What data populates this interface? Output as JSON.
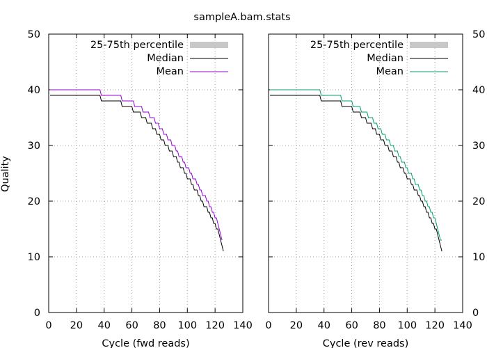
{
  "chart_data": {
    "type": "line",
    "title": "sampleA.bam.stats",
    "ylabel": "Quality",
    "ylim": [
      0,
      50
    ],
    "xlim": [
      0,
      140
    ],
    "yticks": [
      "0",
      "10",
      "20",
      "30",
      "40",
      "50"
    ],
    "xticks": [
      "0",
      "20",
      "40",
      "60",
      "80",
      "100",
      "120",
      "140"
    ],
    "grid": true,
    "legend_position": "top-right",
    "legend": [
      "25-75th percentile",
      "Median",
      "Mean"
    ],
    "panels": [
      {
        "xlabel": "Cycle (fwd reads)",
        "series": [
          {
            "name": "Median",
            "color": "#000000",
            "x": [
              1,
              37,
              38,
              52,
              53,
              60,
              61,
              66,
              67,
              70,
              71,
              74,
              75,
              77,
              78,
              80,
              81,
              83,
              84,
              86,
              87,
              89,
              90,
              92,
              93,
              94,
              95,
              97,
              98,
              99,
              100,
              102,
              103,
              104,
              105,
              107,
              108,
              109,
              110,
              111,
              112,
              114,
              115,
              116,
              117,
              118,
              119,
              120,
              121,
              122,
              123,
              124,
              125,
              126
            ],
            "y": [
              39,
              39,
              38,
              38,
              37,
              37,
              36,
              36,
              35,
              35,
              34,
              34,
              33,
              33,
              32,
              32,
              31,
              31,
              30,
              30,
              29,
              29,
              28,
              28,
              27,
              27,
              26,
              26,
              25,
              25,
              24,
              24,
              23,
              23,
              22,
              22,
              21,
              21,
              20,
              20,
              19,
              19,
              18,
              18,
              17,
              17,
              16,
              16,
              15,
              15,
              14,
              13,
              12,
              11
            ]
          },
          {
            "name": "Mean",
            "color": "#9400d3",
            "x": [
              1,
              37,
              38,
              52,
              53,
              61,
              62,
              67,
              68,
              72,
              73,
              76,
              77,
              79,
              80,
              82,
              83,
              85,
              86,
              88,
              89,
              91,
              92,
              93,
              94,
              96,
              97,
              98,
              99,
              101,
              102,
              103,
              104,
              106,
              107,
              108,
              109,
              110,
              111,
              113,
              114,
              115,
              116,
              117,
              118,
              119,
              120,
              121,
              122,
              123,
              124,
              125
            ],
            "y": [
              40,
              40,
              39,
              39,
              38,
              38,
              37,
              37,
              36,
              36,
              35,
              35,
              34,
              34,
              33,
              33,
              32,
              32,
              31,
              31,
              30,
              30,
              29,
              29,
              28,
              28,
              27,
              27,
              26,
              26,
              25,
              25,
              24,
              24,
              23,
              23,
              22,
              22,
              21,
              21,
              20,
              20,
              19,
              19,
              18,
              18,
              17,
              17,
              16,
              15,
              14,
              13
            ]
          }
        ]
      },
      {
        "xlabel": "Cycle (rev reads)",
        "series": [
          {
            "name": "Median",
            "color": "#000000",
            "x": [
              1,
              37,
              38,
              52,
              53,
              60,
              61,
              66,
              67,
              70,
              71,
              74,
              75,
              77,
              78,
              80,
              81,
              83,
              84,
              86,
              87,
              89,
              90,
              92,
              93,
              94,
              95,
              97,
              98,
              99,
              100,
              102,
              103,
              104,
              105,
              107,
              108,
              109,
              110,
              111,
              112,
              113,
              114,
              115,
              116,
              117,
              118,
              119,
              120,
              121,
              122,
              123,
              124,
              125
            ],
            "y": [
              39,
              39,
              38,
              38,
              37,
              37,
              36,
              36,
              35,
              35,
              34,
              34,
              33,
              33,
              32,
              32,
              31,
              31,
              30,
              30,
              29,
              29,
              28,
              28,
              27,
              27,
              26,
              26,
              25,
              25,
              24,
              24,
              23,
              23,
              22,
              22,
              21,
              21,
              20,
              20,
              19,
              19,
              18,
              18,
              17,
              17,
              16,
              16,
              15,
              15,
              14,
              13,
              12,
              11
            ]
          },
          {
            "name": "Mean",
            "color": "#009e73",
            "x": [
              1,
              37,
              38,
              52,
              53,
              60,
              61,
              66,
              67,
              71,
              72,
              75,
              76,
              78,
              79,
              81,
              82,
              84,
              85,
              87,
              88,
              90,
              91,
              93,
              94,
              95,
              96,
              98,
              99,
              100,
              101,
              103,
              104,
              105,
              106,
              108,
              109,
              110,
              111,
              112,
              113,
              114,
              115,
              116,
              117,
              118,
              119,
              120,
              121,
              122,
              123,
              124,
              125
            ],
            "y": [
              40,
              40,
              39,
              39,
              38,
              38,
              37,
              37,
              36,
              36,
              35,
              35,
              34,
              34,
              33,
              33,
              32,
              32,
              31,
              31,
              30,
              30,
              29,
              29,
              28,
              28,
              27,
              27,
              26,
              26,
              25,
              25,
              24,
              24,
              23,
              23,
              22,
              22,
              21,
              21,
              20,
              20,
              19,
              19,
              18,
              18,
              17,
              17,
              16,
              15,
              14,
              13,
              13
            ]
          }
        ]
      }
    ]
  }
}
